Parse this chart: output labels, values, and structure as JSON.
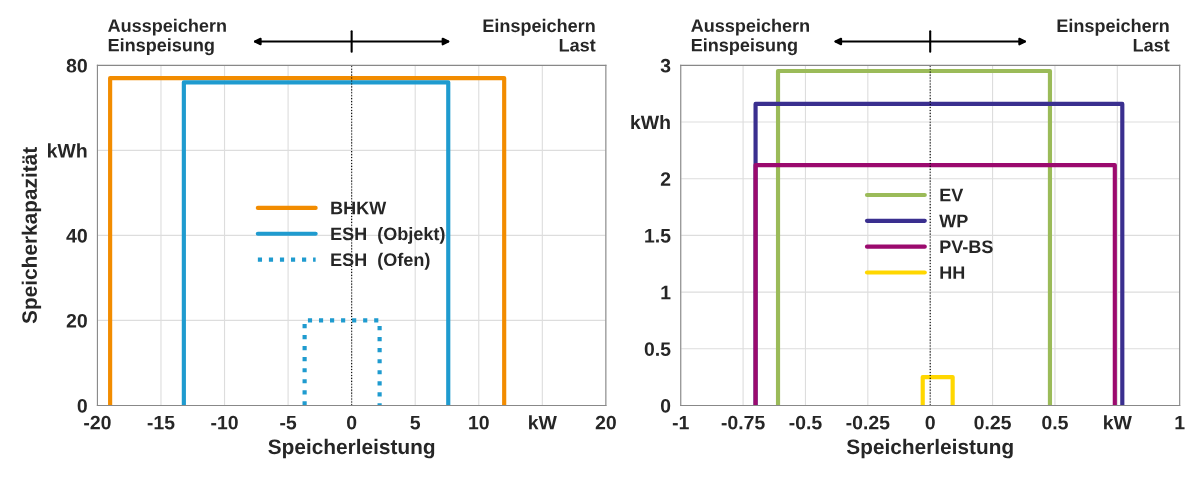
{
  "chart_data": [
    {
      "type": "line",
      "xlabel": "Speicherleistung",
      "ylabel": "Speicherkapazität",
      "xlim": [
        -20,
        20
      ],
      "ylim": [
        0,
        80
      ],
      "xticks": [
        -20,
        -15,
        -10,
        -5,
        0,
        5,
        10,
        {
          "value": 15,
          "label": "kW"
        },
        20
      ],
      "yticks": [
        0,
        20,
        40,
        {
          "value": 60,
          "label": "kWh"
        },
        80
      ],
      "grid": true,
      "legend": "center",
      "annotations": [
        "Ausspeichern\nEinspeisung",
        "Einspeichern\nLast"
      ],
      "ref_lines": [
        {
          "axis": "x",
          "value": 0,
          "color": "#000000",
          "line_style": "dotted"
        }
      ],
      "series": [
        {
          "name": "BHKW",
          "color": "#f28c00",
          "line_style": "solid",
          "x": [
            -19,
            -19,
            12,
            12
          ],
          "values": [
            0,
            77,
            77,
            0
          ]
        },
        {
          "name": "ESH  (Objekt)",
          "color": "#1f9bcf",
          "line_style": "solid",
          "x": [
            -13.2,
            -13.2,
            7.6,
            7.6
          ],
          "values": [
            0,
            76,
            76,
            0
          ]
        },
        {
          "name": "ESH  (Ofen)",
          "color": "#1f9bcf",
          "line_style": "dotted",
          "x": [
            -3.7,
            -3.7,
            2.2,
            2.2
          ],
          "values": [
            0,
            20,
            20,
            0
          ]
        }
      ]
    },
    {
      "type": "line",
      "xlabel": "Speicherleistung",
      "xlim": [
        -1,
        1
      ],
      "ylim": [
        0,
        3
      ],
      "xticks": [
        -1,
        -0.75,
        -0.5,
        -0.25,
        0,
        0.25,
        0.5,
        {
          "value": 0.75,
          "label": "kW"
        },
        1
      ],
      "yticks": [
        0,
        0.5,
        1,
        1.5,
        2,
        {
          "value": 2.5,
          "label": "kWh"
        },
        3
      ],
      "grid": true,
      "legend": "center",
      "annotations": [
        "Ausspeichern\nEinspeisung",
        "Einspeichern\nLast"
      ],
      "ref_lines": [
        {
          "axis": "x",
          "value": 0,
          "color": "#000000",
          "line_style": "dotted"
        }
      ],
      "series": [
        {
          "name": "EV",
          "color": "#9bbb59",
          "line_style": "solid",
          "x": [
            -0.61,
            -0.61,
            0.48,
            0.48
          ],
          "values": [
            0,
            2.95,
            2.95,
            0
          ]
        },
        {
          "name": "WP",
          "color": "#3a2f8f",
          "line_style": "solid",
          "x": [
            -0.7,
            -0.7,
            0.77,
            0.77
          ],
          "values": [
            0,
            2.66,
            2.66,
            0
          ]
        },
        {
          "name": "PV-BS",
          "color": "#9b0a6e",
          "line_style": "solid",
          "x": [
            -0.7,
            -0.7,
            0.74,
            0.74
          ],
          "values": [
            0,
            2.12,
            2.12,
            0
          ]
        },
        {
          "name": "HH",
          "color": "#ffd700",
          "line_style": "solid",
          "x": [
            -0.03,
            -0.03,
            0.09,
            0.09
          ],
          "values": [
            0,
            0.25,
            0.25,
            0
          ]
        }
      ]
    }
  ]
}
